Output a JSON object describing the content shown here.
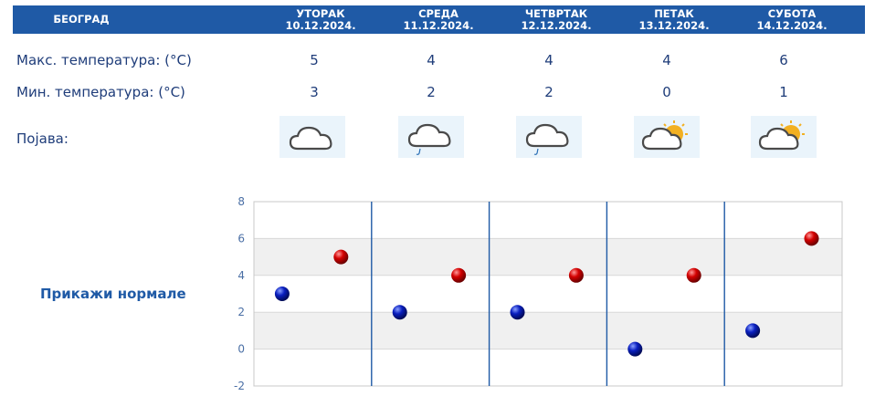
{
  "header": {
    "city": "БЕОГРАД"
  },
  "days": [
    {
      "day": "УТОРАК",
      "date": "10.12.2024.",
      "max": "5",
      "min": "3",
      "icon": "cloud-icon"
    },
    {
      "day": "СРЕДА",
      "date": "11.12.2024.",
      "max": "4",
      "min": "2",
      "icon": "cloud-drizzle-icon"
    },
    {
      "day": "ЧЕТВРТАК",
      "date": "12.12.2024.",
      "max": "4",
      "min": "2",
      "icon": "cloud-drizzle-icon"
    },
    {
      "day": "ПЕТАК",
      "date": "13.12.2024.",
      "max": "4",
      "min": "0",
      "icon": "sun-cloud-icon"
    },
    {
      "day": "СУБОТА",
      "date": "14.12.2024.",
      "max": "6",
      "min": "1",
      "icon": "sun-cloud-icon"
    }
  ],
  "labels": {
    "max_temp": "Макс. температура: (°C)",
    "min_temp": "Мин. температура: (°C)",
    "phenomenon": "Појава:",
    "show_normals": "Прикажи нормале"
  },
  "colors": {
    "header_bg": "#1f5aa6",
    "max_marker": "#d40000",
    "min_marker": "#0a1fbf",
    "divider": "#1f5aa6",
    "band": "#f0f0f0"
  },
  "chart_data": {
    "type": "scatter",
    "categories": [
      "10.12.2024.",
      "11.12.2024.",
      "12.12.2024.",
      "13.12.2024.",
      "14.12.2024."
    ],
    "series": [
      {
        "values": [
          3,
          2,
          2,
          0,
          1
        ]
      },
      {
        "values": [
          5,
          4,
          4,
          4,
          6
        ]
      }
    ],
    "yticks": [
      "8",
      "6",
      "4",
      "2",
      "0",
      "-2"
    ],
    "ylim": [
      -2,
      8
    ],
    "grid": true
  }
}
